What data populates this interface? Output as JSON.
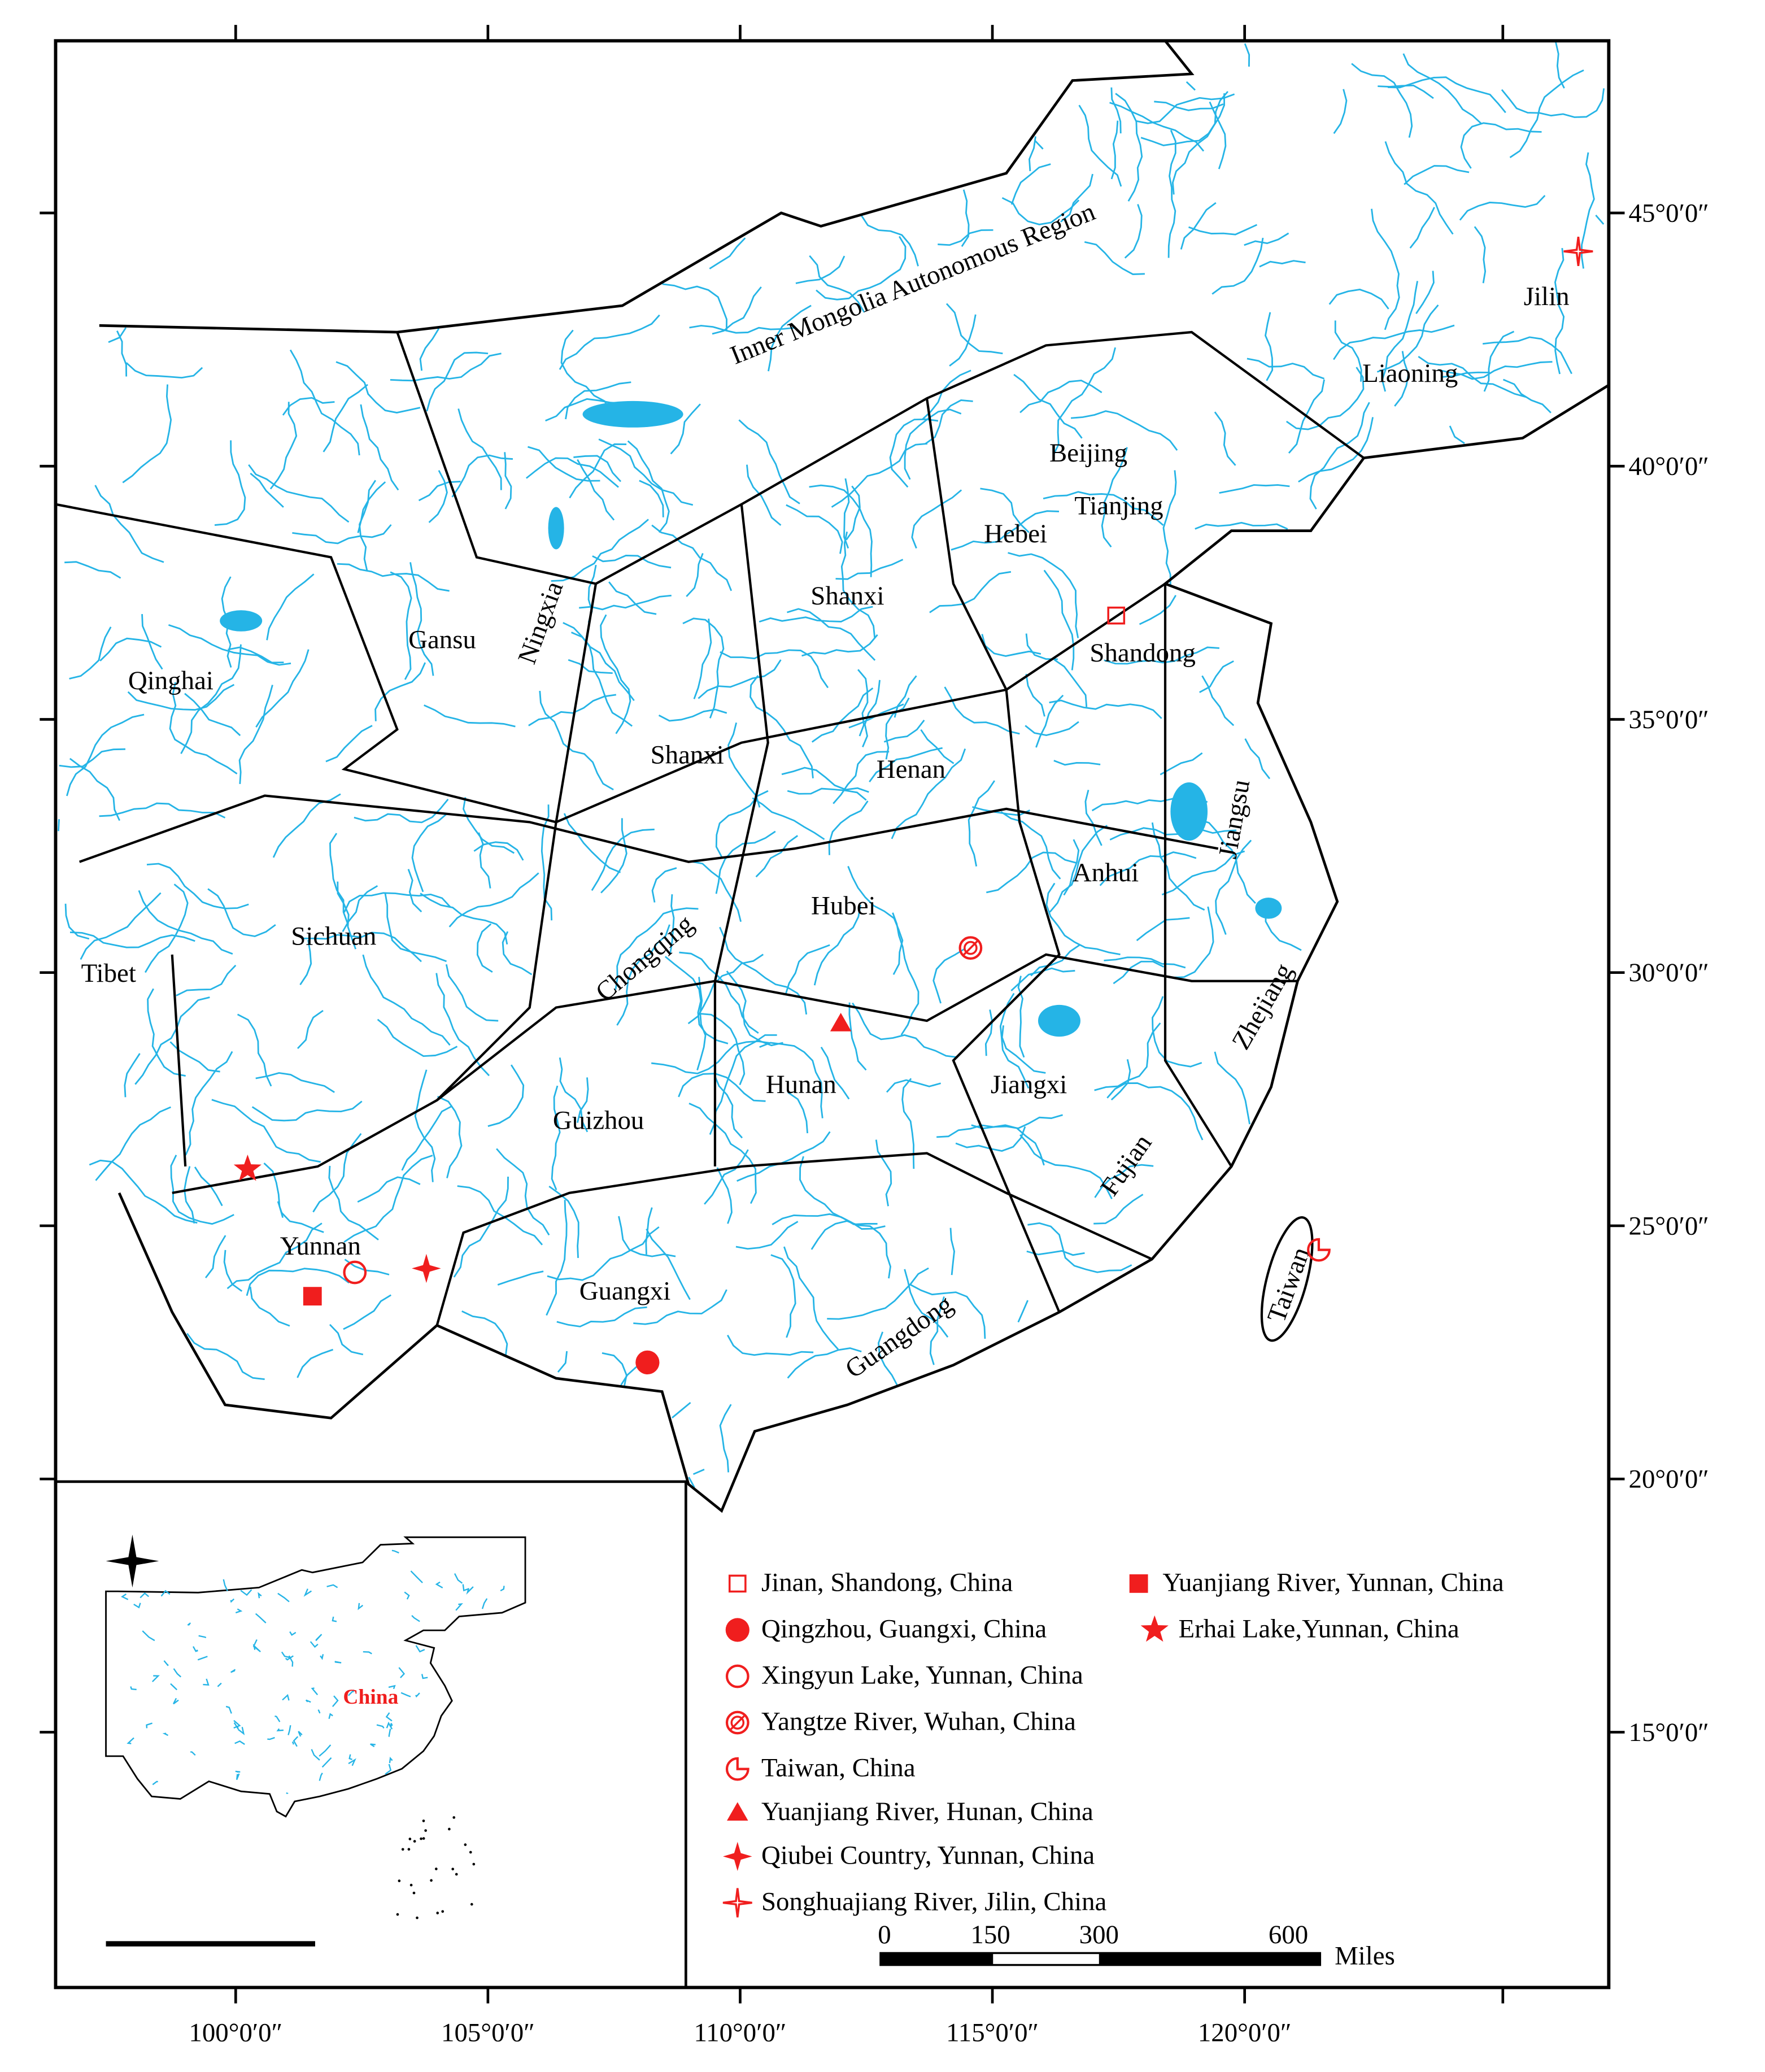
{
  "map": {
    "lon_ticks": [
      "100°0′0″",
      "105°0′0″",
      "110°0′0″",
      "115°0′0″",
      "120°0′0″"
    ],
    "lat_ticks": [
      "45°0′0″",
      "40°0′0″",
      "35°0′0″",
      "30°0′0″",
      "25°0′0″",
      "20°0′0″",
      "15°0′0″"
    ],
    "regions": [
      "Inner Mongolia Autonomous Region",
      "Jilin",
      "Liaoning",
      "Beijing",
      "Tianjing",
      "Hebei",
      "Shanxi",
      "Shandong",
      "Gansu",
      "Ningxia",
      "Qinghai",
      "Shanxi",
      "Henan",
      "Jiangsu",
      "Anhui",
      "Hubei",
      "Sichuan",
      "Chongqing",
      "Tibet",
      "Zhejiang",
      "Hunan",
      "Jiangxi",
      "Guizhou",
      "Fujian",
      "Yunnan",
      "Guangxi",
      "Guangdong",
      "Taiwan"
    ],
    "sites": [
      "Jinan, Shandong, China",
      "Qingzhou, Guangxi, China",
      "Xingyun Lake, Yunnan, China",
      "Yangtze River, Wuhan, China",
      "Taiwan, China",
      "Yuanjiang River, Hunan, China",
      "Qiubei Country, Yunnan, China",
      "Songhuajiang River, Jilin, China",
      "Yuanjiang River, Yunnan, China",
      "Erhai Lake,Yunnan, China"
    ],
    "scale_bar": {
      "labels": [
        0,
        150,
        300,
        600
      ],
      "unit": "Miles"
    },
    "inset": {
      "label": "China"
    }
  }
}
